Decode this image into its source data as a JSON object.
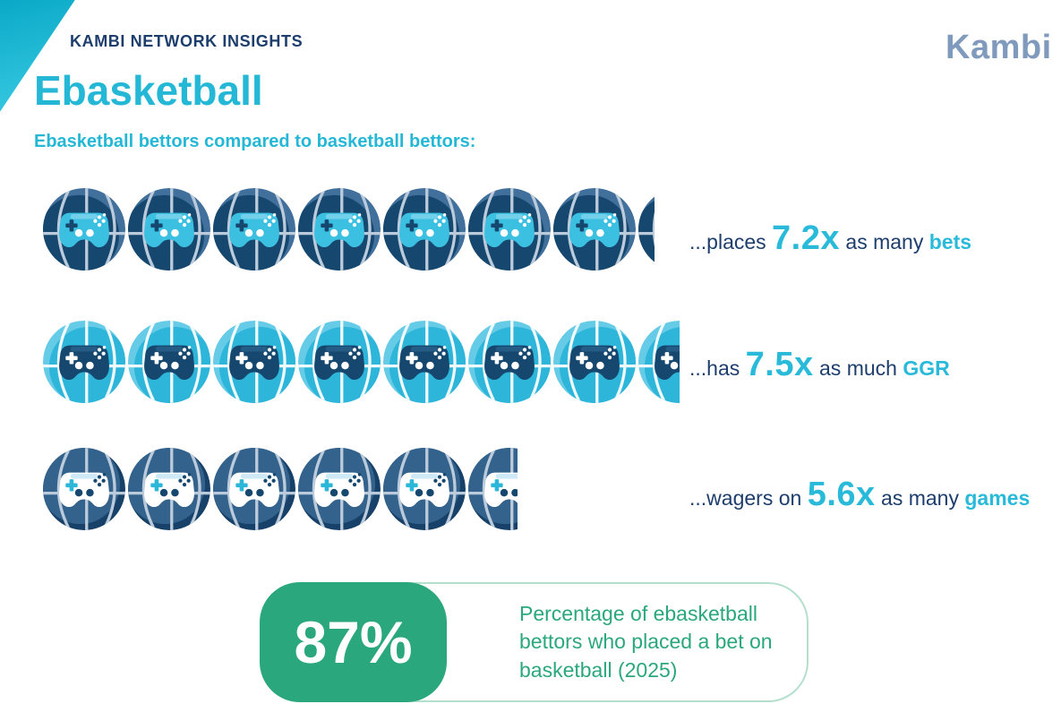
{
  "header": {
    "eyebrow": "KAMBI NETWORK INSIGHTS",
    "logo": "Kambi",
    "title": "Ebasketball",
    "subtitle": "Ebasketball bettors compared to basketball bettors:"
  },
  "colors": {
    "accent_cyan": "#25b8d6",
    "navy": "#1d3e6d",
    "logo_gray_blue": "#7f9abc",
    "green": "#2ba77e",
    "green_border": "#b5dfcd",
    "stripe_cyan": "#14b3d2"
  },
  "chart_data": {
    "type": "pictogram",
    "title": "Ebasketball",
    "subtitle": "Ebasketball bettors compared to basketball bettors:",
    "unit": "multiple (ebasketball bettor vs basketball bettor)",
    "icon": "basketball-with-gamepad",
    "rows": [
      {
        "metric": "bets",
        "value": 7.2,
        "label": "...places 7.2x as many bets",
        "parts": [
          {
            "t": "...places ",
            "s": "plain"
          },
          {
            "t": "7.2x",
            "s": "num"
          },
          {
            "t": " as many ",
            "s": "plain"
          },
          {
            "t": "bets",
            "s": "key"
          }
        ],
        "style": {
          "hi": "#40709b",
          "base": "#16486f",
          "offx": 44,
          "offy": 57,
          "seam": "#bccbdb",
          "pad": "#3cc0e2",
          "strip": "#72d0ea",
          "plus": "#16486f",
          "btn": "#ffffff",
          "dots": "#ffffff"
        }
      },
      {
        "metric": "GGR",
        "value": 7.5,
        "label": "...has 7.5x as much GGR",
        "parts": [
          {
            "t": "...has ",
            "s": "plain"
          },
          {
            "t": "7.5x",
            "s": "num"
          },
          {
            "t": " as much ",
            "s": "plain"
          },
          {
            "t": "GGR",
            "s": "key"
          }
        ],
        "style": {
          "hi": "#66cbe7",
          "base": "#2eb5da",
          "offx": 56,
          "offy": 56,
          "seam": "#eefafd",
          "pad": "#16486f",
          "strip": "#255c85",
          "plus": "#ffffff",
          "btn": "#ffffff",
          "dots": "#ffffff"
        }
      },
      {
        "metric": "games",
        "value": 5.6,
        "label": "...wagers on 5.6x as many games",
        "parts": [
          {
            "t": "...wagers on ",
            "s": "plain"
          },
          {
            "t": "5.6x",
            "s": "num"
          },
          {
            "t": " as many ",
            "s": "plain"
          },
          {
            "t": "games",
            "s": "key"
          }
        ],
        "style": {
          "hi": "#174168",
          "base": "#33638c",
          "offx": 45,
          "offy": 44,
          "seam": "#bccbdb",
          "pad": "#ffffff",
          "strip": "#cdeaf6",
          "plus": "#2cb7d9",
          "btn": "#16486f",
          "dots": "#16486f"
        }
      }
    ],
    "stat": {
      "value": "87%",
      "description": "Percentage of ebasketball bettors who placed a bet on basketball (2025)"
    }
  }
}
